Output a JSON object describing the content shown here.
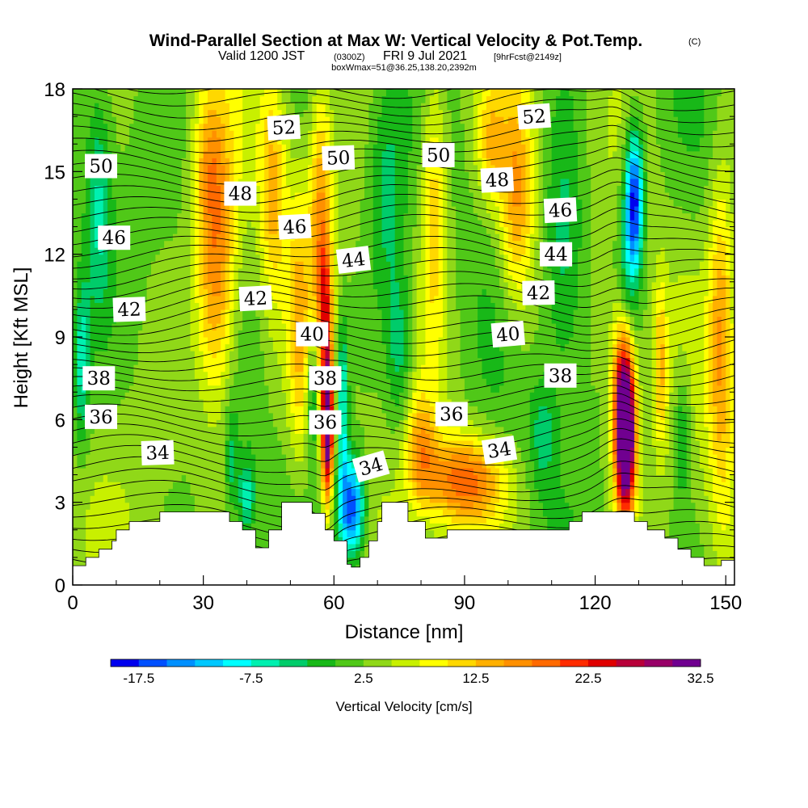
{
  "header": {
    "title": "Wind-Parallel Section at Max W: Vertical Velocity & Pot.Temp.",
    "title_mark": "(C)",
    "valid_a": "Valid 1200 JST",
    "valid_b": "(0300Z)",
    "valid_c": "FRI 9 Jul 2021",
    "valid_d": "[9hrFcst@2149z]",
    "box": "boxWmax=51@36.25,138.20,2392m"
  },
  "chart_data": {
    "type": "heatmap",
    "xlabel": "Distance [nm]",
    "ylabel": "Height [Kft MSL]",
    "xlim": [
      0,
      152
    ],
    "ylim": [
      0,
      18
    ],
    "x_ticks": [
      "0",
      "30",
      "60",
      "90",
      "120",
      "150"
    ],
    "y_ticks": [
      "0",
      "3",
      "6",
      "9",
      "12",
      "15",
      "18"
    ],
    "colorbar": {
      "title": "Vertical Velocity [cm/s]",
      "labels": [
        "-17.5",
        "-7.5",
        "2.5",
        "12.5",
        "22.5",
        "32.5"
      ],
      "colors": [
        "#0000ee",
        "#0050ff",
        "#0090ff",
        "#00c8ff",
        "#00ffff",
        "#00f0b0",
        "#00cc6a",
        "#18b818",
        "#50c818",
        "#90d818",
        "#c8f000",
        "#ffff00",
        "#ffd800",
        "#ffb000",
        "#ff9000",
        "#ff6a00",
        "#ff2c00",
        "#e00000",
        "#b8003a",
        "#980068",
        "#700090"
      ]
    },
    "field_levels": [
      -17.5,
      -15,
      -12.5,
      -10,
      -7.5,
      -5,
      -2.5,
      0,
      2.5,
      5,
      7.5,
      10,
      12.5,
      15,
      17.5,
      20,
      22.5,
      25,
      27.5,
      30,
      32.5
    ],
    "field_features": [
      {
        "x": 33,
        "y": 11.5,
        "sx": 4.5,
        "sy": 5.0,
        "w": 15
      },
      {
        "x": 31,
        "y": 15.5,
        "sx": 3.5,
        "sy": 2.5,
        "w": 6
      },
      {
        "x": 46,
        "y": 14.5,
        "sx": 3.0,
        "sy": 4.0,
        "w": 10
      },
      {
        "x": 52,
        "y": 9.5,
        "sx": 2.5,
        "sy": 5.0,
        "w": 8
      },
      {
        "x": 57,
        "y": 13.5,
        "sx": 2.5,
        "sy": 5.0,
        "w": 12
      },
      {
        "x": 58.5,
        "y": 6.0,
        "sx": 1.3,
        "sy": 2.8,
        "w": 34
      },
      {
        "x": 58.0,
        "y": 10.5,
        "sx": 1.5,
        "sy": 2.0,
        "w": 10
      },
      {
        "x": 55,
        "y": 7.0,
        "sx": 1.3,
        "sy": 2.5,
        "w": -9
      },
      {
        "x": 64,
        "y": 2.8,
        "sx": 3.0,
        "sy": 1.8,
        "w": -21
      },
      {
        "x": 62,
        "y": 6.5,
        "sx": 1.3,
        "sy": 3.0,
        "w": -12
      },
      {
        "x": 40,
        "y": 3.2,
        "sx": 2.0,
        "sy": 1.4,
        "w": -9
      },
      {
        "x": 36.5,
        "y": 4.5,
        "sx": 1.5,
        "sy": 2.0,
        "w": -6
      },
      {
        "x": 72,
        "y": 14.5,
        "sx": 4.0,
        "sy": 4.0,
        "w": -6
      },
      {
        "x": 75,
        "y": 8.5,
        "sx": 3.0,
        "sy": 3.0,
        "w": -7
      },
      {
        "x": 83,
        "y": 14.0,
        "sx": 3.0,
        "sy": 5.0,
        "w": 10
      },
      {
        "x": 90,
        "y": 3.8,
        "sx": 9.0,
        "sy": 1.6,
        "w": 16
      },
      {
        "x": 80,
        "y": 5.0,
        "sx": 3.5,
        "sy": 2.0,
        "w": 10
      },
      {
        "x": 102,
        "y": 14.0,
        "sx": 4.0,
        "sy": 4.0,
        "w": 12
      },
      {
        "x": 96,
        "y": 16.0,
        "sx": 3.0,
        "sy": 2.0,
        "w": 8
      },
      {
        "x": 113,
        "y": 12.0,
        "sx": 5.0,
        "sy": 5.0,
        "w": -8
      },
      {
        "x": 129,
        "y": 14.0,
        "sx": 2.0,
        "sy": 2.5,
        "w": -22
      },
      {
        "x": 127,
        "y": 11.0,
        "sx": 2.5,
        "sy": 3.0,
        "w": -8
      },
      {
        "x": 127,
        "y": 5.5,
        "sx": 2.2,
        "sy": 2.8,
        "w": 40
      },
      {
        "x": 126,
        "y": 7.5,
        "sx": 2.5,
        "sy": 3.5,
        "w": 12
      },
      {
        "x": 135,
        "y": 8.0,
        "sx": 1.5,
        "sy": 3.0,
        "w": 9
      },
      {
        "x": 140,
        "y": 5.5,
        "sx": 2.0,
        "sy": 2.5,
        "w": -7
      },
      {
        "x": 149,
        "y": 9.0,
        "sx": 3.0,
        "sy": 6.0,
        "w": 12
      },
      {
        "x": 108,
        "y": 5.5,
        "sx": 3.0,
        "sy": 2.0,
        "w": -6
      },
      {
        "x": 2,
        "y": 8.0,
        "sx": 2.0,
        "sy": 3.0,
        "w": -10
      },
      {
        "x": 6,
        "y": 14.0,
        "sx": 3.0,
        "sy": 4.0,
        "w": -8
      }
    ],
    "isentrope_labels": [
      {
        "text": "50",
        "x": 6.5,
        "y": 15.2,
        "rot": 0
      },
      {
        "text": "52",
        "x": 48.5,
        "y": 16.6,
        "rot": -3
      },
      {
        "text": "50",
        "x": 61,
        "y": 15.5,
        "rot": -2
      },
      {
        "text": "50",
        "x": 84,
        "y": 15.6,
        "rot": 0
      },
      {
        "text": "52",
        "x": 106,
        "y": 17.0,
        "rot": -4
      },
      {
        "text": "48",
        "x": 38.5,
        "y": 14.2,
        "rot": 0
      },
      {
        "text": "48",
        "x": 97.5,
        "y": 14.7,
        "rot": -3
      },
      {
        "text": "46",
        "x": 9.5,
        "y": 12.6,
        "rot": 0
      },
      {
        "text": "46",
        "x": 51,
        "y": 13.0,
        "rot": -3
      },
      {
        "text": "46",
        "x": 112,
        "y": 13.6,
        "rot": -3
      },
      {
        "text": "44",
        "x": 64.5,
        "y": 11.8,
        "rot": -7
      },
      {
        "text": "44",
        "x": 111,
        "y": 12.0,
        "rot": 0
      },
      {
        "text": "42",
        "x": 13,
        "y": 10.0,
        "rot": -2
      },
      {
        "text": "42",
        "x": 42,
        "y": 10.4,
        "rot": -3
      },
      {
        "text": "42",
        "x": 107,
        "y": 10.6,
        "rot": -1
      },
      {
        "text": "40",
        "x": 55,
        "y": 9.1,
        "rot": 0
      },
      {
        "text": "40",
        "x": 100,
        "y": 9.1,
        "rot": -5
      },
      {
        "text": "38",
        "x": 6,
        "y": 7.5,
        "rot": 0
      },
      {
        "text": "38",
        "x": 58,
        "y": 7.5,
        "rot": 0
      },
      {
        "text": "38",
        "x": 112,
        "y": 7.6,
        "rot": 0
      },
      {
        "text": "36",
        "x": 6.5,
        "y": 6.1,
        "rot": 0
      },
      {
        "text": "36",
        "x": 58,
        "y": 5.9,
        "rot": 0
      },
      {
        "text": "36",
        "x": 87,
        "y": 6.2,
        "rot": 0
      },
      {
        "text": "34",
        "x": 19.5,
        "y": 4.8,
        "rot": -2
      },
      {
        "text": "34",
        "x": 68.5,
        "y": 4.3,
        "rot": -16
      },
      {
        "text": "34",
        "x": 98,
        "y": 4.9,
        "rot": -9
      }
    ],
    "terrain": [
      [
        0,
        0.7
      ],
      [
        3,
        0.7
      ],
      [
        3,
        1.0
      ],
      [
        6,
        1.0
      ],
      [
        6,
        1.3
      ],
      [
        9,
        1.3
      ],
      [
        9,
        1.6
      ],
      [
        10,
        1.6
      ],
      [
        10,
        2.0
      ],
      [
        13,
        2.0
      ],
      [
        13,
        2.3
      ],
      [
        20,
        2.3
      ],
      [
        20,
        2.65
      ],
      [
        36,
        2.65
      ],
      [
        36,
        2.3
      ],
      [
        39,
        2.3
      ],
      [
        39,
        2.0
      ],
      [
        42,
        2.0
      ],
      [
        42,
        1.35
      ],
      [
        45,
        1.35
      ],
      [
        45,
        2.0
      ],
      [
        48,
        2.0
      ],
      [
        48,
        3.0
      ],
      [
        55,
        3.0
      ],
      [
        55,
        2.6
      ],
      [
        58,
        2.6
      ],
      [
        58,
        2.0
      ],
      [
        60,
        2.0
      ],
      [
        60,
        1.6
      ],
      [
        63,
        1.6
      ],
      [
        63,
        0.75
      ],
      [
        64,
        0.75
      ],
      [
        64,
        0.65
      ],
      [
        66,
        0.65
      ],
      [
        66,
        1.0
      ],
      [
        68,
        1.0
      ],
      [
        68,
        1.6
      ],
      [
        70,
        1.6
      ],
      [
        70,
        2.3
      ],
      [
        71,
        2.3
      ],
      [
        71,
        3.0
      ],
      [
        77,
        3.0
      ],
      [
        77,
        2.3
      ],
      [
        81,
        2.3
      ],
      [
        81,
        1.7
      ],
      [
        86,
        1.7
      ],
      [
        86,
        2.0
      ],
      [
        114,
        2.0
      ],
      [
        114,
        2.3
      ],
      [
        117,
        2.3
      ],
      [
        117,
        2.65
      ],
      [
        129,
        2.65
      ],
      [
        129,
        2.3
      ],
      [
        132,
        2.3
      ],
      [
        132,
        2.0
      ],
      [
        136,
        2.0
      ],
      [
        136,
        1.7
      ],
      [
        139,
        1.7
      ],
      [
        139,
        1.3
      ],
      [
        142,
        1.3
      ],
      [
        142,
        1.0
      ],
      [
        145,
        1.0
      ],
      [
        145,
        0.7
      ],
      [
        149,
        0.7
      ],
      [
        149,
        0.9
      ],
      [
        152,
        0.9
      ]
    ]
  }
}
